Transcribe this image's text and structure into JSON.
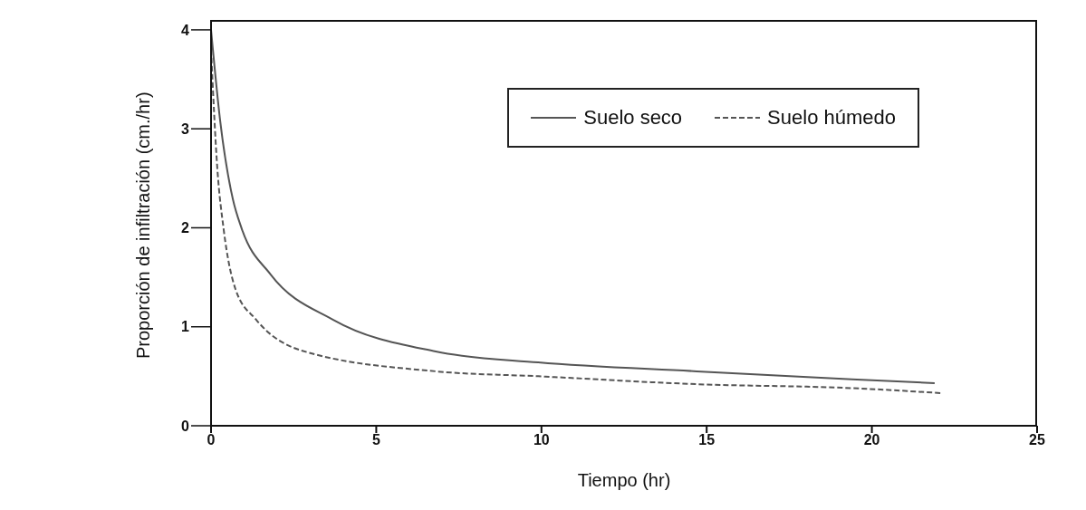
{
  "chart_data": {
    "type": "line",
    "xlabel": "Tiempo  (hr)",
    "ylabel": "Proporción de infiltración  (cm./hr)",
    "xlim": [
      0,
      25
    ],
    "xticks": [
      0,
      5,
      10,
      15,
      20,
      25
    ],
    "ylim": [
      0,
      4.1
    ],
    "yticks": [
      0,
      1,
      2,
      3,
      4
    ],
    "legend": "top right",
    "marker": "none",
    "series": [
      {
        "name": "Suelo seco",
        "color": "#555555",
        "line_style": "solid",
        "x": [
          0,
          0.27,
          0.66,
          0.93,
          1.8,
          3.7,
          6.8,
          9.9,
          14.7,
          19.4,
          21.9
        ],
        "values": [
          4.0,
          3.1,
          2.29,
          1.99,
          1.53,
          1.07,
          0.75,
          0.64,
          0.55,
          0.47,
          0.43
        ]
      },
      {
        "name": "Suelo húmedo",
        "color": "#555555",
        "line_style": "dashed",
        "x": [
          0,
          0.19,
          0.38,
          0.74,
          1.37,
          2.74,
          6.8,
          9.9,
          14.7,
          19.4,
          22.1
        ],
        "values": [
          3.8,
          2.6,
          1.99,
          1.38,
          1.07,
          0.76,
          0.55,
          0.5,
          0.42,
          0.38,
          0.33
        ]
      }
    ]
  }
}
